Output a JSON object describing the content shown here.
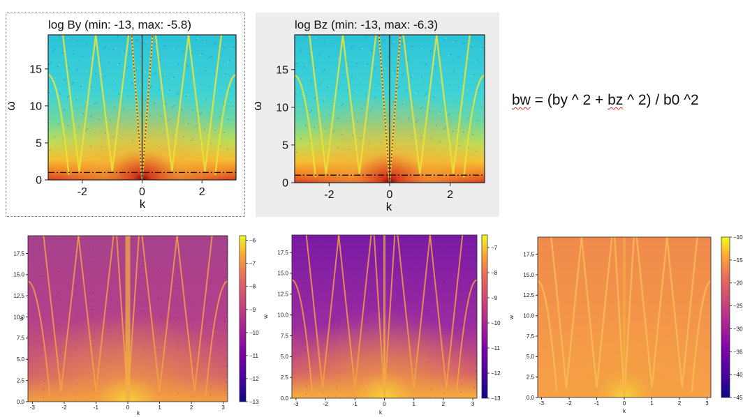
{
  "formula": {
    "bw": "bw",
    "eq": " = (by ^ 2 + ",
    "bz": "bz",
    "rest": " ^ 2) / b0 ^2"
  },
  "chart_data": [
    {
      "type": "heatmap",
      "title": "log By (min:   -13, max:  -5.8)",
      "xlabel": "k",
      "ylabel": "ω",
      "xlim": [
        -3.14,
        3.14
      ],
      "ylim": [
        0,
        19.6
      ],
      "xticks": [
        -2,
        0,
        2
      ],
      "yticks": [
        0,
        5,
        10,
        15
      ],
      "colormap": "jet",
      "min": -13,
      "max": -5.8,
      "hline_y": 1,
      "colorbar": false
    },
    {
      "type": "heatmap",
      "title": "log Bz (min:   -13, max:  -6.3)",
      "xlabel": "k",
      "ylabel": "ω",
      "xlim": [
        -3.14,
        3.14
      ],
      "ylim": [
        0,
        19.6
      ],
      "xticks": [
        -2,
        0,
        2
      ],
      "yticks": [
        0,
        5,
        10,
        15
      ],
      "colormap": "jet",
      "min": -13,
      "max": -6.3,
      "hline_y": 1,
      "colorbar": false
    },
    {
      "type": "heatmap",
      "title": "",
      "xlabel": "k",
      "ylabel": "w",
      "xlim": [
        -3.14,
        3.14
      ],
      "ylim": [
        0,
        19.6
      ],
      "xticks": [
        -3,
        -2,
        -1,
        0,
        1,
        2,
        3
      ],
      "yticks": [
        0.0,
        2.5,
        5.0,
        7.5,
        10.0,
        12.5,
        15.0,
        17.5
      ],
      "colormap": "plasma",
      "colorbar": true,
      "cbar_ticks": [
        -6,
        -7,
        -8,
        -9,
        -10,
        -11,
        -12,
        -13
      ],
      "cbar_range": [
        -13,
        -5.8
      ]
    },
    {
      "type": "heatmap",
      "title": "",
      "xlabel": "k",
      "ylabel": "w",
      "xlim": [
        -3.14,
        3.14
      ],
      "ylim": [
        0,
        19.6
      ],
      "xticks": [
        -3,
        -2,
        -1,
        0,
        1,
        2,
        3
      ],
      "yticks": [
        0.0,
        2.5,
        5.0,
        7.5,
        10.0,
        12.5,
        15.0,
        17.5
      ],
      "colormap": "plasma",
      "colorbar": true,
      "cbar_ticks": [
        -7,
        -8,
        -9,
        -10,
        -11,
        -12,
        -13
      ],
      "cbar_range": [
        -13,
        -6.5
      ]
    },
    {
      "type": "heatmap",
      "title": "",
      "xlabel": "k",
      "ylabel": "w",
      "xlim": [
        -3.14,
        3.14
      ],
      "ylim": [
        0,
        19.6
      ],
      "xticks": [
        -3,
        -2,
        -1,
        0,
        1,
        2,
        3
      ],
      "yticks": [
        0.0,
        2.5,
        5.0,
        7.5,
        10.0,
        12.5,
        15.0,
        17.5
      ],
      "colormap": "plasma",
      "colorbar": true,
      "cbar_ticks": [
        "-10",
        "-15",
        "-20",
        "-25",
        "-30",
        "-35",
        "-40",
        "-45"
      ],
      "cbar_range": [
        -45,
        -10
      ]
    }
  ]
}
